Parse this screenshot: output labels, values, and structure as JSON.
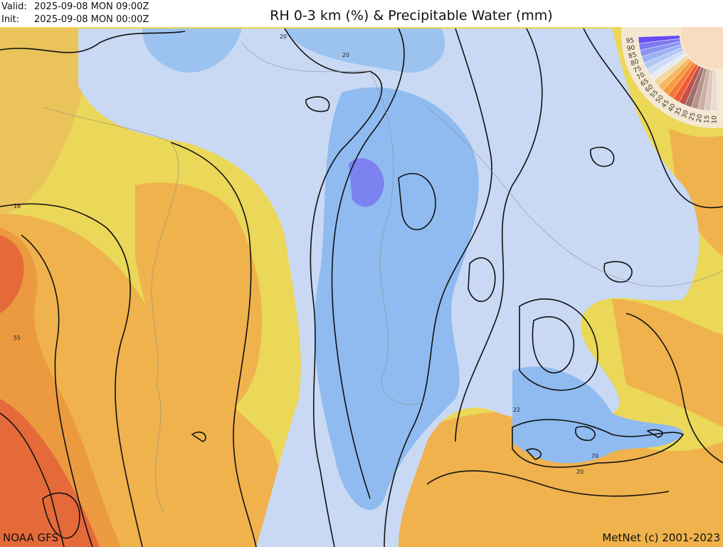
{
  "header": {
    "valid_label": "Valid:",
    "valid": "2025-09-08 MON 09:00Z",
    "init_label": "Init:",
    "init": "2025-09-08 MON 00:00Z",
    "title": "RH 0-3 km (%) & Precipitable Water (mm)"
  },
  "footer": {
    "source": "NOAA GFS",
    "credit": "MetNet (c) 2001-2023"
  },
  "contour_labels": [
    "20",
    "20",
    "16",
    "55",
    "22",
    "20",
    "70"
  ],
  "legend": {
    "labels": [
      "95",
      "90",
      "85",
      "80",
      "75",
      "70",
      "65",
      "60",
      "55",
      "50",
      "45",
      "40",
      "35",
      "30",
      "25",
      "20",
      "15",
      "10"
    ],
    "colors": [
      "#6a4cf0",
      "#7c78f0",
      "#8a94f2",
      "#9cb0f4",
      "#b4c8f6",
      "#cfdcf6",
      "#e8ecf0",
      "#f2d8a0",
      "#f4b860",
      "#f59a40",
      "#f57a36",
      "#ef5a30",
      "#c0504a",
      "#a07070",
      "#b89488",
      "#ccb0a4",
      "#dcc8bc",
      "#eadcd2"
    ]
  }
}
